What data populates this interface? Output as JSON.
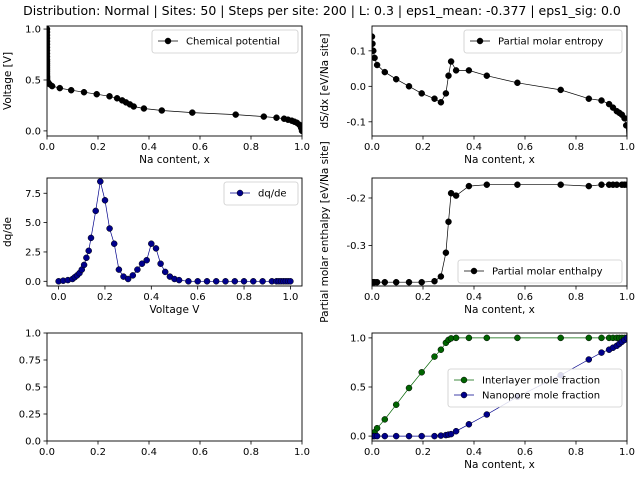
{
  "figure_title": "Distribution: Normal | Sites: 50 | Steps per site: 200 | L: 0.3 | eps1_mean: -0.377 | eps1_sig: 0.0",
  "chart_data": [
    {
      "id": "chem",
      "type": "line",
      "title": "",
      "xlabel": "Na content, x",
      "ylabel": "Voltage [V]",
      "xlim": [
        0,
        1
      ],
      "ylim": [
        -0.05,
        1.03
      ],
      "xticks": [
        0.0,
        0.2,
        0.4,
        0.6,
        0.8,
        1.0
      ],
      "yticks": [
        0.0,
        0.5,
        1.0
      ],
      "legend_position": "top-right",
      "series": [
        {
          "name": "Chemical potential",
          "color": "#000000",
          "x": [
            0.0,
            0.0,
            0.0,
            0.0,
            0.0,
            0.0,
            0.0,
            0.0,
            0.0,
            0.0,
            0.0,
            0.0,
            0.0,
            0.0,
            0.0,
            0.0,
            0.0,
            0.0,
            0.0,
            0.0,
            0.0,
            0.0,
            0.0,
            0.0,
            0.003,
            0.006,
            0.01,
            0.02,
            0.05,
            0.095,
            0.145,
            0.195,
            0.245,
            0.275,
            0.295,
            0.31,
            0.325,
            0.34,
            0.38,
            0.45,
            0.57,
            0.74,
            0.85,
            0.9,
            0.93,
            0.945,
            0.96,
            0.97,
            0.98,
            0.99,
            0.997,
            1.0
          ],
          "y": [
            1.0,
            0.97,
            0.94,
            0.91,
            0.88,
            0.85,
            0.82,
            0.79,
            0.76,
            0.73,
            0.7,
            0.68,
            0.66,
            0.64,
            0.62,
            0.6,
            0.58,
            0.56,
            0.54,
            0.53,
            0.52,
            0.51,
            0.5,
            0.49,
            0.48,
            0.47,
            0.46,
            0.44,
            0.42,
            0.4,
            0.38,
            0.36,
            0.34,
            0.32,
            0.3,
            0.28,
            0.26,
            0.24,
            0.22,
            0.2,
            0.18,
            0.16,
            0.14,
            0.13,
            0.12,
            0.11,
            0.1,
            0.09,
            0.08,
            0.06,
            0.03,
            0.0
          ]
        }
      ]
    },
    {
      "id": "entropy",
      "type": "line",
      "title": "",
      "xlabel": "Na content, x",
      "ylabel": "dS/dx [eV/Na site]",
      "xlim": [
        0,
        1
      ],
      "ylim": [
        -0.14,
        0.17
      ],
      "xticks": [
        0.0,
        0.2,
        0.4,
        0.6,
        0.8,
        1.0
      ],
      "yticks": [
        -0.1,
        0.0,
        0.1
      ],
      "legend_position": "top-right",
      "series": [
        {
          "name": "Partial molar entropy",
          "color": "#000000",
          "x": [
            0.0,
            0.002,
            0.005,
            0.01,
            0.02,
            0.05,
            0.095,
            0.145,
            0.195,
            0.245,
            0.27,
            0.29,
            0.3,
            0.31,
            0.33,
            0.38,
            0.45,
            0.57,
            0.74,
            0.85,
            0.9,
            0.93,
            0.945,
            0.96,
            0.97,
            0.98,
            0.99,
            0.997,
            1.0
          ],
          "y": [
            0.14,
            0.12,
            0.1,
            0.08,
            0.06,
            0.04,
            0.02,
            0.0,
            -0.02,
            -0.035,
            -0.045,
            -0.02,
            0.03,
            0.07,
            0.045,
            0.045,
            0.03,
            0.01,
            -0.01,
            -0.035,
            -0.04,
            -0.05,
            -0.06,
            -0.07,
            -0.075,
            -0.08,
            -0.09,
            -0.11,
            -0.15
          ]
        }
      ]
    },
    {
      "id": "dqde",
      "type": "line",
      "title": "",
      "xlabel": "Voltage V",
      "ylabel": "dq/de",
      "xlim": [
        -0.05,
        1.05
      ],
      "ylim": [
        -0.4,
        8.8
      ],
      "xticks": [
        0.0,
        0.2,
        0.4,
        0.6,
        0.8,
        1.0
      ],
      "yticks": [
        0.0,
        2.5,
        5.0,
        7.5
      ],
      "legend_position": "top-right",
      "series": [
        {
          "name": "dq/de",
          "color": "#00008b",
          "x": [
            0.0,
            0.02,
            0.04,
            0.06,
            0.07,
            0.08,
            0.09,
            0.1,
            0.11,
            0.12,
            0.13,
            0.14,
            0.16,
            0.18,
            0.2,
            0.22,
            0.24,
            0.26,
            0.28,
            0.3,
            0.32,
            0.34,
            0.36,
            0.38,
            0.4,
            0.42,
            0.44,
            0.46,
            0.48,
            0.5,
            0.52,
            0.56,
            0.6,
            0.64,
            0.68,
            0.72,
            0.76,
            0.8,
            0.84,
            0.88,
            0.92,
            0.94,
            0.95,
            0.96,
            0.97,
            0.98,
            0.99,
            1.0
          ],
          "y": [
            0.0,
            0.05,
            0.1,
            0.2,
            0.35,
            0.5,
            0.7,
            1.0,
            1.4,
            2.0,
            2.6,
            3.7,
            6.0,
            8.5,
            6.9,
            4.5,
            3.2,
            1.0,
            0.4,
            0.2,
            0.5,
            1.0,
            1.5,
            1.8,
            3.2,
            2.8,
            1.5,
            0.8,
            0.4,
            0.2,
            0.1,
            0.0,
            0.0,
            0.0,
            0.0,
            0.0,
            0.0,
            0.0,
            0.0,
            0.0,
            0.0,
            0.0,
            0.0,
            0.0,
            0.0,
            0.0,
            0.0,
            0.0
          ]
        }
      ]
    },
    {
      "id": "enthalpy",
      "type": "line",
      "title": "",
      "xlabel": "Na content, x",
      "ylabel": "Partial molar enthalpy [eV/Na site]",
      "xlim": [
        0,
        1
      ],
      "ylim": [
        -0.385,
        -0.158
      ],
      "xticks": [
        0.0,
        0.2,
        0.4,
        0.6,
        0.8,
        1.0
      ],
      "yticks": [
        -0.3,
        -0.2
      ],
      "legend_position": "bottom-right",
      "series": [
        {
          "name": "Partial molar enthalpy",
          "color": "#000000",
          "x": [
            0.0,
            0.005,
            0.01,
            0.02,
            0.05,
            0.095,
            0.145,
            0.195,
            0.245,
            0.27,
            0.29,
            0.3,
            0.31,
            0.33,
            0.38,
            0.45,
            0.57,
            0.74,
            0.85,
            0.9,
            0.93,
            0.945,
            0.96,
            0.98,
            0.99,
            1.0
          ],
          "y": [
            -0.377,
            -0.377,
            -0.377,
            -0.377,
            -0.377,
            -0.377,
            -0.377,
            -0.377,
            -0.375,
            -0.365,
            -0.315,
            -0.25,
            -0.19,
            -0.195,
            -0.175,
            -0.172,
            -0.172,
            -0.172,
            -0.175,
            -0.172,
            -0.172,
            -0.172,
            -0.172,
            -0.172,
            -0.172,
            -0.172
          ]
        }
      ]
    },
    {
      "id": "empty",
      "type": "line",
      "title": "",
      "xlabel": "",
      "ylabel": "",
      "xlim": [
        0,
        1
      ],
      "ylim": [
        0,
        1
      ],
      "xticks": [
        0.0,
        0.2,
        0.4,
        0.6,
        0.8,
        1.0
      ],
      "yticks": [
        0.0,
        0.25,
        0.5,
        0.75,
        1.0
      ],
      "series": []
    },
    {
      "id": "fractions",
      "type": "line",
      "title": "",
      "xlabel": "Na content, x",
      "ylabel": "",
      "xlim": [
        0,
        1
      ],
      "ylim": [
        -0.05,
        1.05
      ],
      "xticks": [
        0.0,
        0.2,
        0.4,
        0.6,
        0.8,
        1.0
      ],
      "yticks": [
        0.0,
        0.5,
        1.0
      ],
      "legend_position": "center-right",
      "series": [
        {
          "name": "Interlayer mole fraction",
          "color": "#006400",
          "x": [
            0.0,
            0.005,
            0.01,
            0.02,
            0.05,
            0.095,
            0.145,
            0.195,
            0.245,
            0.27,
            0.29,
            0.3,
            0.31,
            0.33,
            0.38,
            0.45,
            0.57,
            0.74,
            0.85,
            0.9,
            0.93,
            0.945,
            0.96,
            0.97,
            0.98,
            0.99,
            1.0
          ],
          "y": [
            0.0,
            0.02,
            0.04,
            0.08,
            0.17,
            0.32,
            0.49,
            0.65,
            0.81,
            0.88,
            0.95,
            0.98,
            0.995,
            1.0,
            1.0,
            1.0,
            1.0,
            1.0,
            1.0,
            1.0,
            1.0,
            1.0,
            1.0,
            1.0,
            1.0,
            1.0,
            1.0
          ]
        },
        {
          "name": "Nanopore mole fraction",
          "color": "#00008b",
          "x": [
            0.0,
            0.005,
            0.01,
            0.02,
            0.05,
            0.095,
            0.145,
            0.195,
            0.245,
            0.27,
            0.29,
            0.3,
            0.31,
            0.33,
            0.38,
            0.45,
            0.57,
            0.74,
            0.85,
            0.9,
            0.93,
            0.945,
            0.96,
            0.97,
            0.98,
            0.99,
            1.0
          ],
          "y": [
            0.0,
            0.0,
            0.0,
            0.0,
            0.0,
            0.0,
            0.0,
            0.0,
            0.0,
            0.005,
            0.01,
            0.015,
            0.02,
            0.05,
            0.12,
            0.22,
            0.4,
            0.62,
            0.78,
            0.85,
            0.88,
            0.9,
            0.92,
            0.94,
            0.96,
            0.98,
            1.0
          ]
        }
      ]
    }
  ]
}
